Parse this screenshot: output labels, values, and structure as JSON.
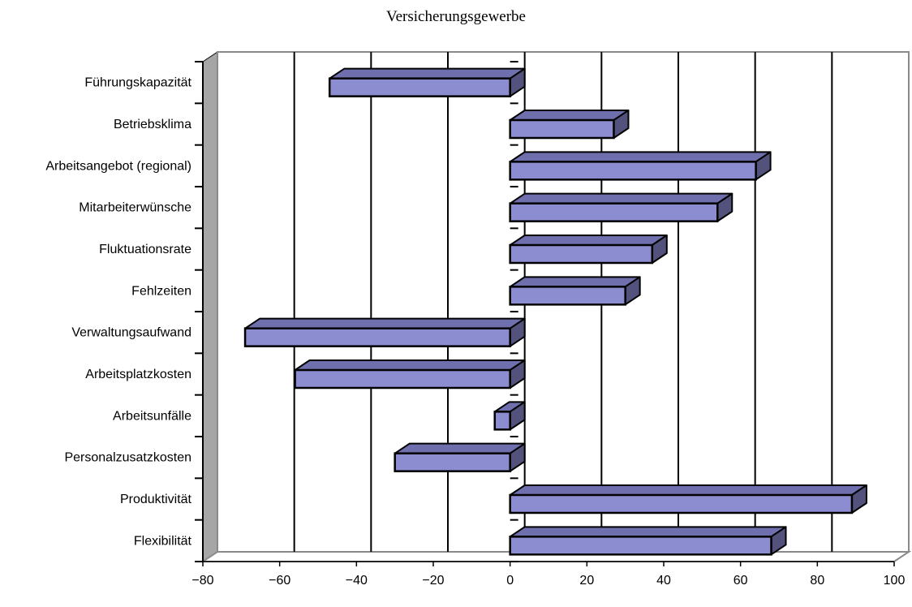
{
  "chart_data": {
    "type": "bar",
    "orientation": "horizontal",
    "three_d": true,
    "title": "Versicherungsgewerbe",
    "categories": [
      "Führungskapazität",
      "Betriebsklima",
      "Arbeitsangebot (regional)",
      "Mitarbeiterwünsche",
      "Fluktuationsrate",
      "Fehlzeiten",
      "Verwaltungsaufwand",
      "Arbeitsplatzkosten",
      "Arbeitsunfälle",
      "Personalzusatzkosten",
      "Produktivität",
      "Flexibilität"
    ],
    "values": [
      -47,
      27,
      64,
      54,
      37,
      30,
      -69,
      -56,
      -4,
      -30,
      89,
      68
    ],
    "xlim": [
      -80,
      100
    ],
    "x_ticks": [
      -80,
      -60,
      -40,
      -20,
      0,
      20,
      40,
      60,
      80,
      100
    ],
    "x_tick_labels": [
      "−80",
      "−60",
      "−40",
      "−20",
      "0",
      "20",
      "40",
      "60",
      "80",
      "100"
    ],
    "grid": true,
    "legend": "none",
    "colors": {
      "bar_front": "#8c8cd0",
      "bar_top": "#6f6fae",
      "bar_side": "#52527c",
      "wall": "#a6a6a6",
      "wall_edge": "#8a8a8a",
      "grid": "#000000"
    }
  }
}
